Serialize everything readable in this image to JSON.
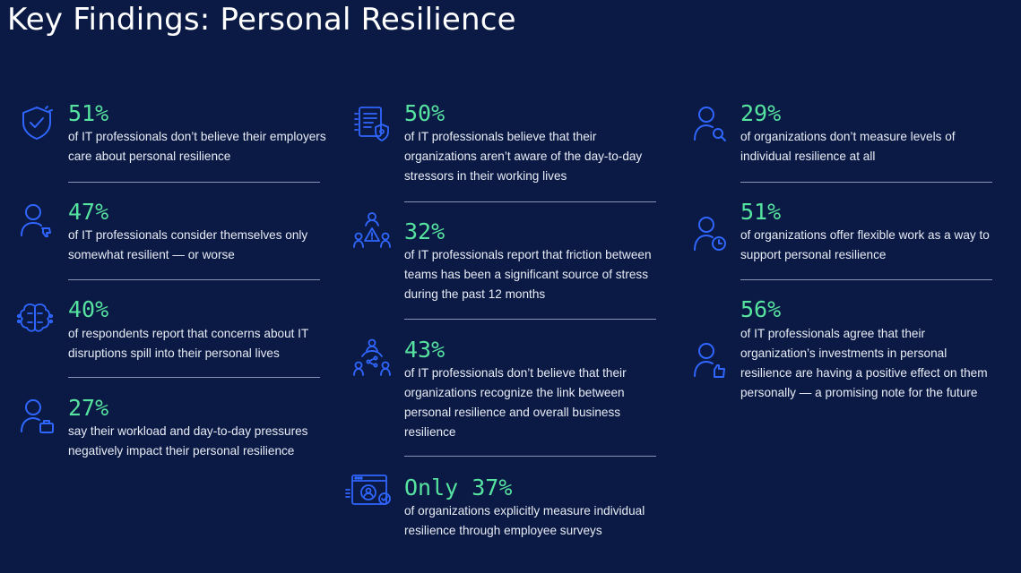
{
  "title": "Key Findings: Personal Resilience",
  "colors": {
    "background": "#0b1a45",
    "stat": "#56e39f",
    "icon": "#2f66ff",
    "rule": "#8a95b5"
  },
  "findings": [
    {
      "icon": "shield-check-icon",
      "stat": "51%",
      "text": "of IT professionals don’t believe their employers care about personal resilience"
    },
    {
      "icon": "person-thumbs-down-icon",
      "stat": "47%",
      "text": "of IT professionals consider themselves only somewhat resilient — or worse"
    },
    {
      "icon": "brain-circuit-icon",
      "stat": "40%",
      "text": "of respondents report that concerns about IT disruptions spill into their personal lives"
    },
    {
      "icon": "person-briefcase-icon",
      "stat": "27%",
      "text": "say their workload and day-to-day pressures negatively impact their personal resilience"
    },
    {
      "icon": "document-shield-icon",
      "stat": "50%",
      "text": "of IT professionals believe that their organizations aren’t aware of the day-to-day stressors in their working lives"
    },
    {
      "icon": "team-warning-icon",
      "stat": "32%",
      "text": "of IT professionals report that friction between teams has been a significant source of stress during the past 12 months"
    },
    {
      "icon": "team-share-icon",
      "stat": "43%",
      "text": "of IT professionals don’t believe that their organizations recognize the link between personal resilience and overall business resilience"
    },
    {
      "icon": "survey-window-icon",
      "stat": "Only 37%",
      "text": "of organizations explicitly measure individual resilience through employee surveys"
    },
    {
      "icon": "person-search-icon",
      "stat": "29%",
      "text": "of organizations don’t measure levels of individual resilience at all"
    },
    {
      "icon": "person-clock-icon",
      "stat": "51%",
      "text": "of organizations offer flexible work as a way to support personal resilience"
    },
    {
      "icon": "person-thumbs-up-icon",
      "stat": "56%",
      "text": "of IT professionals agree that their organization’s investments in personal resilience are having a positive effect on them personally — a promising note for the future"
    }
  ]
}
